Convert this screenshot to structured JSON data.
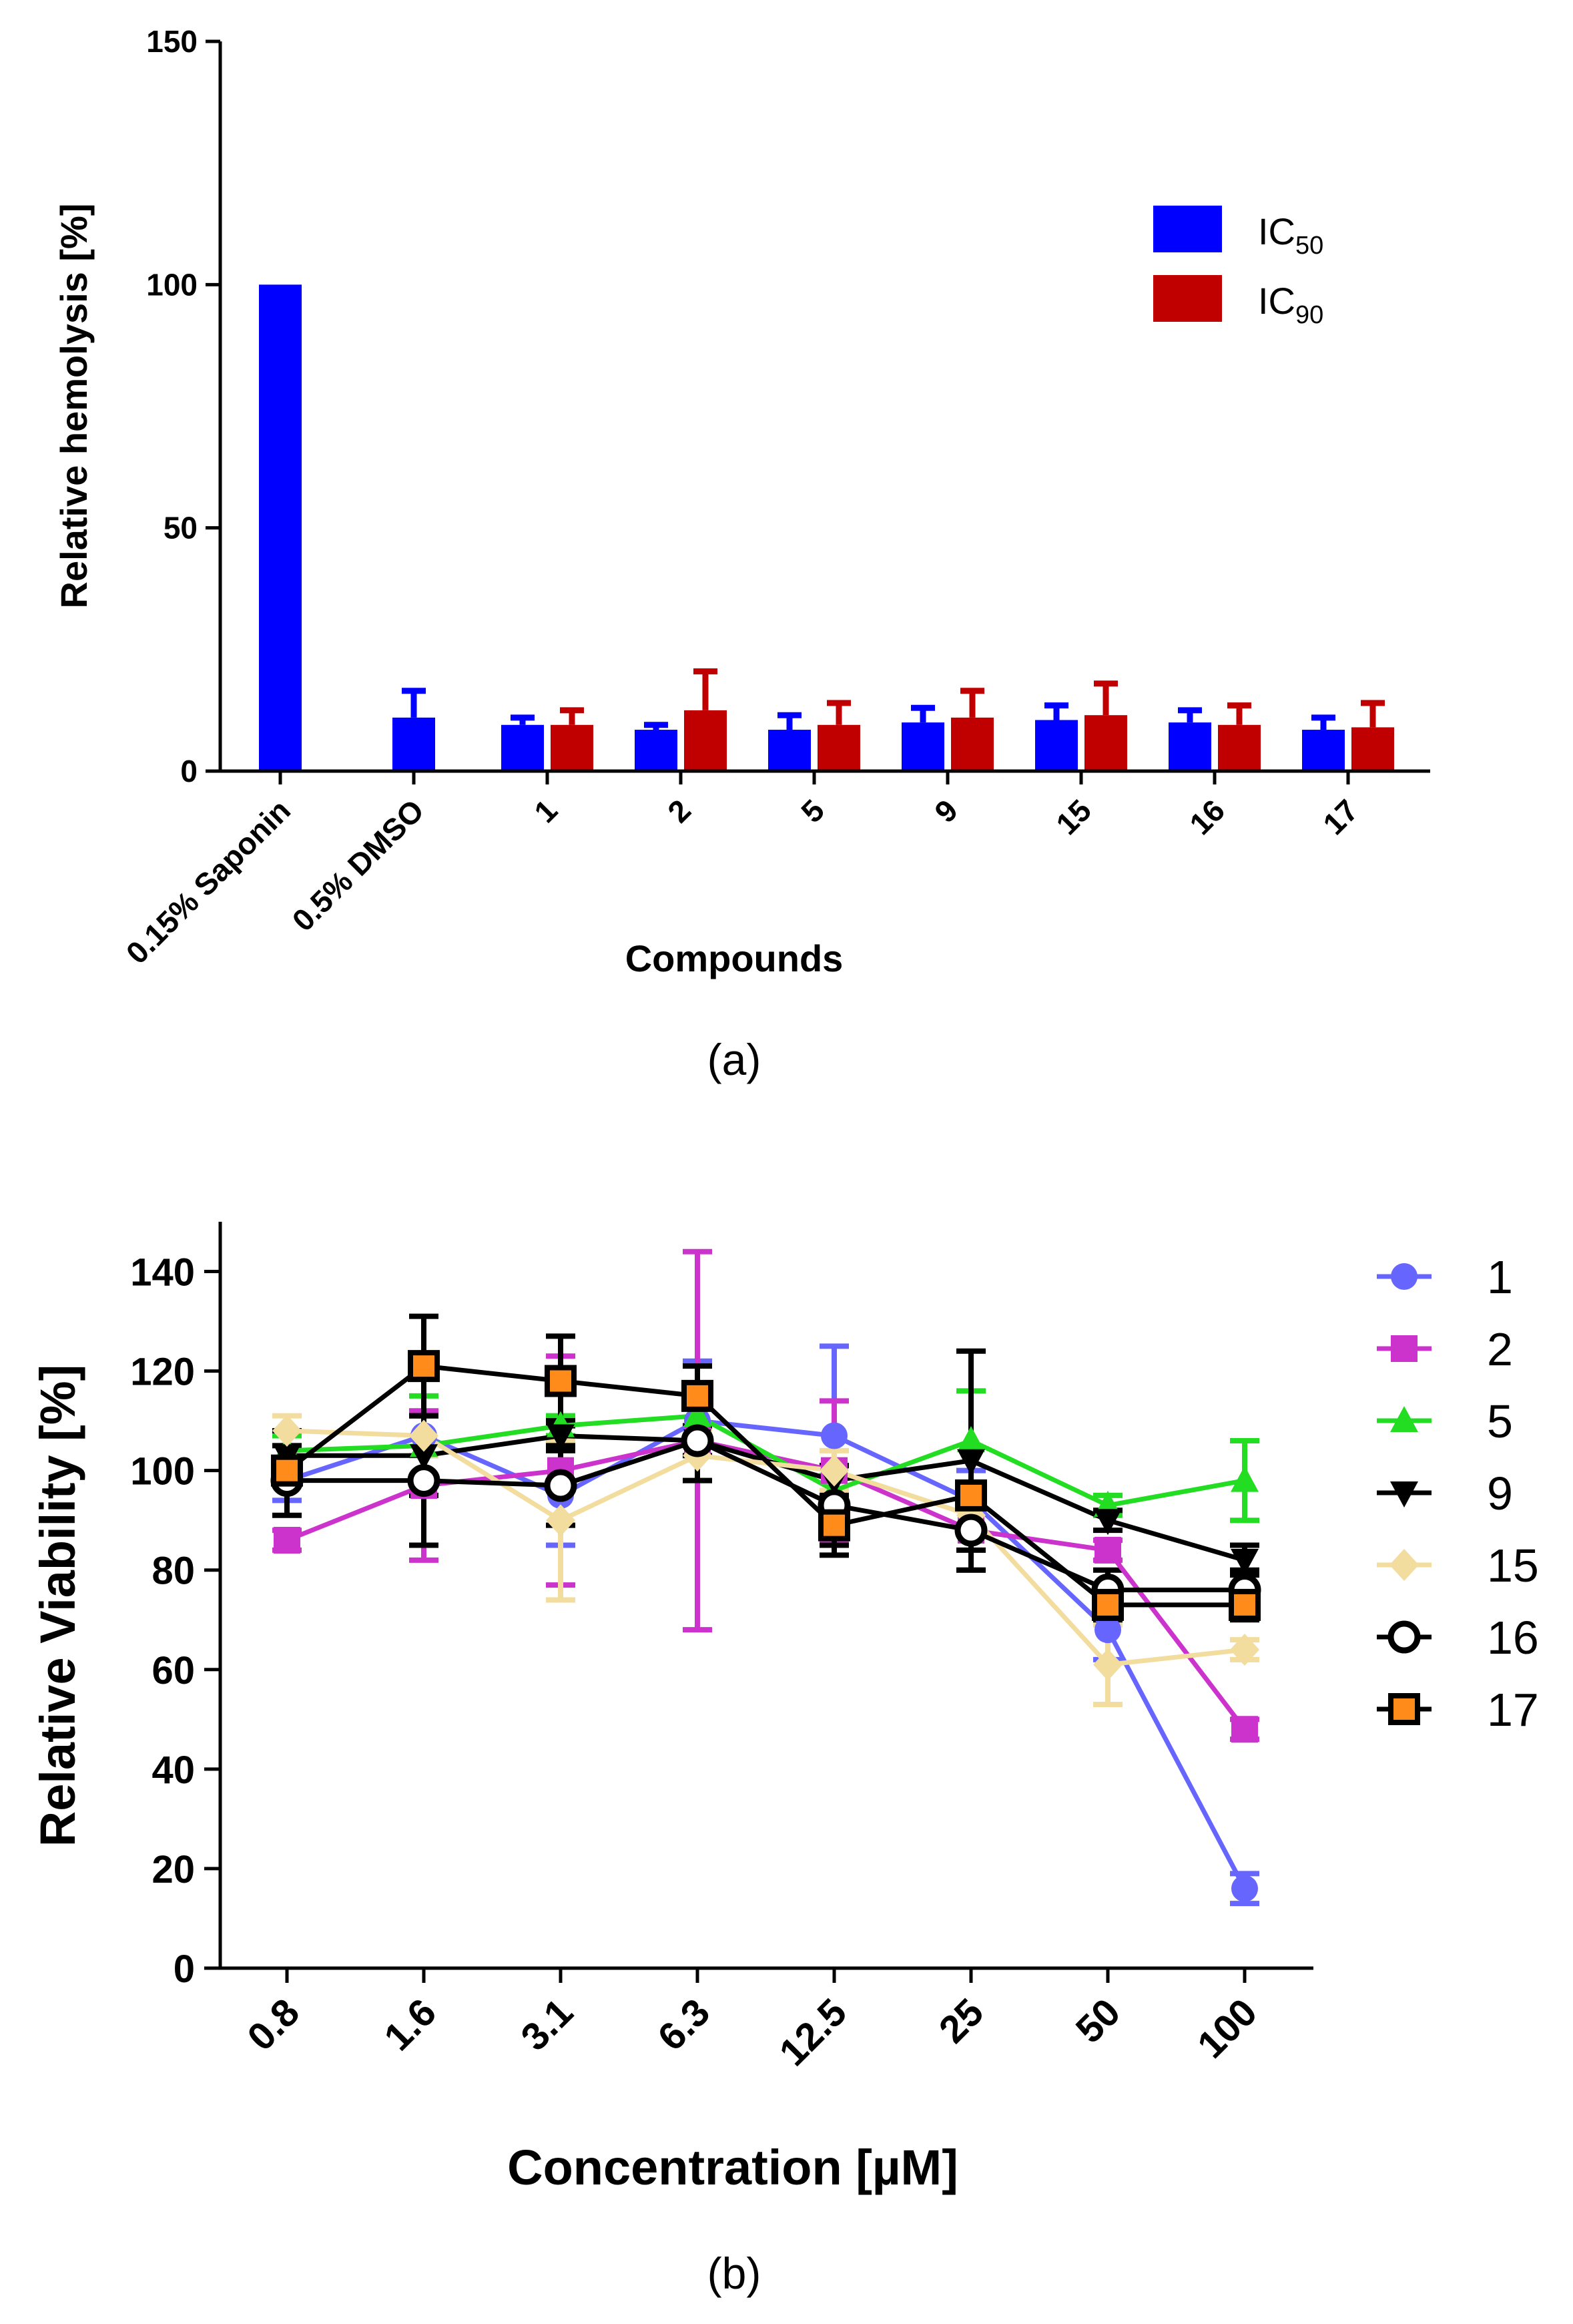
{
  "chart_data": [
    {
      "type": "bar",
      "panel_label": "(a)",
      "title": "",
      "xlabel": "Compounds",
      "ylabel": "Relative hemolysis [%]",
      "ylim": [
        0,
        150
      ],
      "yticks": [
        "0",
        "50",
        "100",
        "150"
      ],
      "categories": [
        "0.15% Saponin",
        "0.5% DMSO",
        "1",
        "2",
        "5",
        "9",
        "15",
        "16",
        "17"
      ],
      "legend_position": "top-right",
      "series": [
        {
          "name": "IC50",
          "legend_main": "IC",
          "legend_sub": "50",
          "color": "#0000FF",
          "values": [
            100,
            11,
            9.5,
            8.5,
            8.5,
            10,
            10.5,
            10,
            8.5
          ],
          "errors": [
            0,
            5.5,
            1.5,
            1.0,
            3.0,
            3.0,
            3.0,
            2.5,
            2.5
          ]
        },
        {
          "name": "IC90",
          "legend_main": "IC",
          "legend_sub": "90",
          "color": "#C00000",
          "values": [
            null,
            null,
            9.5,
            12.5,
            9.5,
            11,
            11.5,
            9.5,
            9.0
          ],
          "errors": [
            null,
            null,
            3.0,
            8.0,
            4.5,
            5.5,
            6.5,
            4.0,
            5.0
          ]
        }
      ]
    },
    {
      "type": "line",
      "panel_label": "(b)",
      "title": "",
      "xlabel": "Concentration [µM]",
      "ylabel": "Relative Viability [%]",
      "ylim": [
        0,
        150
      ],
      "yticks": [
        "0",
        "20",
        "40",
        "60",
        "80",
        "100",
        "120",
        "140"
      ],
      "x": [
        "0.8",
        "1.6",
        "3.1",
        "6.3",
        "12.5",
        "25",
        "50",
        "100"
      ],
      "legend_position": "right",
      "series": [
        {
          "name": "1",
          "color": "#6666FF",
          "marker": "circle",
          "values": [
            98,
            107,
            95,
            110,
            107,
            94,
            68,
            16
          ],
          "errors": [
            4,
            4,
            10,
            12,
            18,
            6,
            6,
            3
          ]
        },
        {
          "name": "2",
          "color": "#CC33CC",
          "marker": "square",
          "values": [
            86,
            97,
            100,
            106,
            100,
            88,
            84,
            48
          ],
          "errors": [
            2,
            15,
            23,
            38,
            14,
            8,
            2,
            2
          ]
        },
        {
          "name": "5",
          "color": "#22DD22",
          "marker": "triangle-up",
          "values": [
            104,
            105,
            109,
            111,
            96,
            106,
            93,
            98
          ],
          "errors": [
            3,
            10,
            2,
            2,
            3,
            10,
            2,
            8
          ]
        },
        {
          "name": "9",
          "color": "#000000",
          "marker": "triangle-down",
          "values": [
            103,
            103,
            107,
            106,
            98,
            102,
            90,
            82
          ],
          "errors": [
            5,
            8,
            3,
            3,
            3,
            22,
            2,
            3
          ]
        },
        {
          "name": "15",
          "color": "#F2DC9E",
          "marker": "diamond",
          "values": [
            108,
            107,
            90,
            103,
            100,
            91,
            61,
            64
          ],
          "errors": [
            3,
            4,
            16,
            5,
            4,
            4,
            8,
            2
          ]
        },
        {
          "name": "16",
          "color": "#000000",
          "marker": "open-circle",
          "values": [
            98,
            98,
            97,
            106,
            93,
            88,
            76,
            76
          ],
          "errors": [
            7,
            13,
            8,
            8,
            8,
            4,
            4,
            4
          ]
        },
        {
          "name": "17",
          "color": "#000000",
          "fill": "#FF8C1A",
          "marker": "orange-square",
          "values": [
            100,
            121,
            118,
            115,
            89,
            95,
            73,
            73
          ],
          "errors": [
            2,
            10,
            9,
            6,
            6,
            2,
            3,
            3
          ]
        }
      ]
    }
  ]
}
